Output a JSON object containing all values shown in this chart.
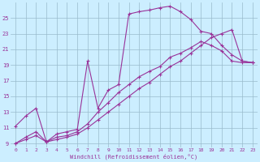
{
  "xlabel": "Windchill (Refroidissement éolien,°C)",
  "background_color": "#cceeff",
  "grid_color": "#99bbcc",
  "line_color": "#993399",
  "x_ticks": [
    0,
    1,
    2,
    3,
    4,
    5,
    6,
    7,
    8,
    9,
    10,
    11,
    12,
    13,
    14,
    15,
    16,
    17,
    18,
    19,
    20,
    21,
    22,
    23
  ],
  "y_ticks": [
    9,
    11,
    13,
    15,
    17,
    19,
    21,
    23,
    25
  ],
  "xlim": [
    -0.5,
    23.5
  ],
  "ylim": [
    8.5,
    27
  ],
  "line1_x": [
    0,
    1,
    2,
    3,
    4,
    5,
    6,
    7,
    8,
    9,
    10,
    11,
    12,
    13,
    14,
    15,
    16,
    17,
    18,
    19,
    20,
    21,
    22,
    23
  ],
  "line1_y": [
    11.2,
    12.5,
    13.5,
    9.2,
    10.2,
    10.5,
    10.8,
    19.5,
    13.5,
    15.8,
    16.5,
    25.5,
    25.8,
    26.0,
    26.3,
    26.5,
    25.8,
    24.8,
    23.3,
    23.0,
    21.5,
    20.3,
    19.5,
    19.3
  ],
  "line2_x": [
    0,
    1,
    2,
    3,
    4,
    5,
    6,
    7,
    8,
    9,
    10,
    11,
    12,
    13,
    14,
    15,
    16,
    17,
    18,
    19,
    20,
    21,
    22,
    23
  ],
  "line2_y": [
    9.0,
    9.8,
    10.5,
    9.2,
    9.8,
    10.0,
    10.5,
    11.5,
    13.0,
    14.2,
    15.5,
    16.5,
    17.5,
    18.2,
    18.8,
    20.0,
    20.5,
    21.2,
    22.0,
    21.5,
    20.8,
    19.5,
    19.3,
    19.3
  ],
  "line3_x": [
    0,
    1,
    2,
    3,
    4,
    5,
    6,
    7,
    8,
    9,
    10,
    11,
    12,
    13,
    14,
    15,
    16,
    17,
    18,
    19,
    20,
    21,
    22,
    23
  ],
  "line3_y": [
    9.0,
    9.5,
    10.0,
    9.2,
    9.5,
    9.8,
    10.2,
    11.0,
    12.0,
    13.0,
    14.0,
    15.0,
    16.0,
    16.8,
    17.8,
    18.8,
    19.5,
    20.5,
    21.5,
    22.5,
    23.0,
    23.5,
    19.5,
    19.3
  ]
}
